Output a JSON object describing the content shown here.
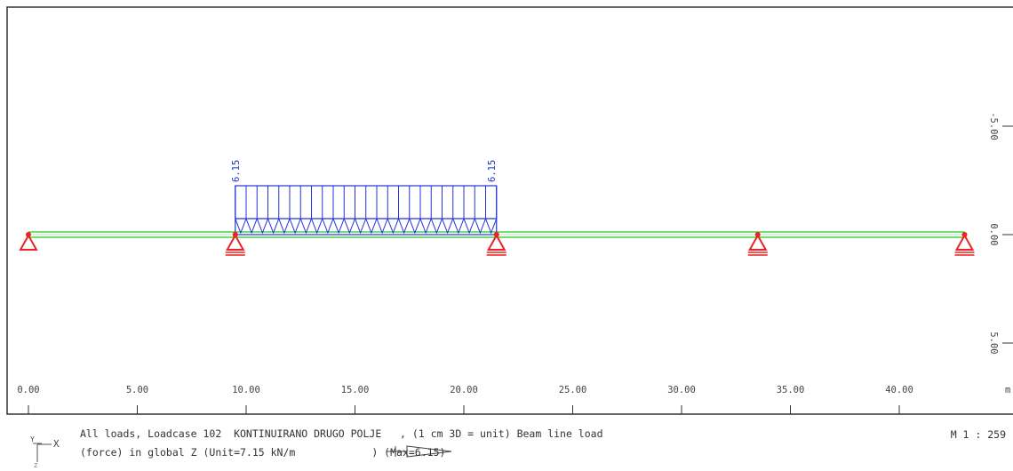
{
  "diagram": {
    "supports": [
      {
        "x_label": "0.00",
        "x": 0.0
      },
      {
        "x_label": "9.50",
        "x": 9.5
      },
      {
        "x_label": "21.50",
        "x": 21.5
      },
      {
        "x_label": "33.50",
        "x": 33.5
      },
      {
        "x_label": "43.00",
        "x": 43.0
      }
    ],
    "beam": {
      "x_start": 0.0,
      "x_end": 43.0,
      "color": "#22cc22"
    },
    "load": {
      "x_start": 9.5,
      "x_end": 21.5,
      "value": 6.15,
      "label_start": "6.15",
      "label_end": "6.15",
      "color": "#2233dd"
    },
    "support_color": "#ee2222",
    "x_axis": {
      "ticks": [
        {
          "value": 0,
          "label": "0.00"
        },
        {
          "value": 5,
          "label": "5.00"
        },
        {
          "value": 10,
          "label": "10.00"
        },
        {
          "value": 15,
          "label": "15.00"
        },
        {
          "value": 20,
          "label": "20.00"
        },
        {
          "value": 25,
          "label": "25.00"
        },
        {
          "value": 30,
          "label": "30.00"
        },
        {
          "value": 35,
          "label": "35.00"
        },
        {
          "value": 40,
          "label": "40.00"
        }
      ],
      "unit": "m"
    },
    "z_axis": {
      "ticks": [
        {
          "value": -5,
          "label": "-5.00"
        },
        {
          "value": 0,
          "label": "0.00"
        },
        {
          "value": 5,
          "label": "5.00"
        }
      ]
    }
  },
  "caption": {
    "line1": "All loads, Loadcase 102  KONTINUIRANO DRUGO POLJE   , (1 cm 3D = unit) Beam line load",
    "line2_prefix": "(force) in global Z (Unit=7.15 kN/m",
    "line2_suffix": ") (Max=6.15)",
    "scale": "M 1 : 259"
  },
  "axis_icon": {
    "x_label": "X",
    "y_label": "Y",
    "z_label": "Z"
  }
}
